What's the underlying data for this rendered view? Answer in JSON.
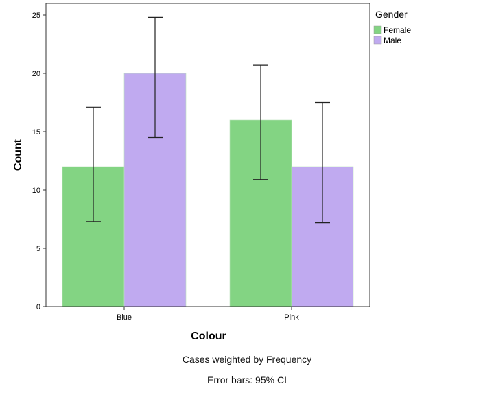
{
  "chart_data": {
    "type": "bar",
    "title": "",
    "xlabel": "Colour",
    "ylabel": "Count",
    "categories": [
      "Blue",
      "Pink"
    ],
    "ylim": [
      0,
      26
    ],
    "yticks": [
      0,
      5,
      10,
      15,
      20,
      25
    ],
    "legend_title": "Gender",
    "legend_position": "top-right (outside plot)",
    "series": [
      {
        "name": "Female",
        "color": "#83d483",
        "values": [
          12,
          16
        ],
        "ci_low": [
          7.3,
          10.9
        ],
        "ci_high": [
          17.1,
          20.7
        ]
      },
      {
        "name": "Male",
        "color": "#c0aaf0",
        "values": [
          20,
          12
        ],
        "ci_low": [
          14.5,
          7.2
        ],
        "ci_high": [
          24.8,
          17.5
        ]
      }
    ],
    "notes": [
      "Cases weighted by Frequency",
      "Error bars: 95% CI"
    ]
  }
}
